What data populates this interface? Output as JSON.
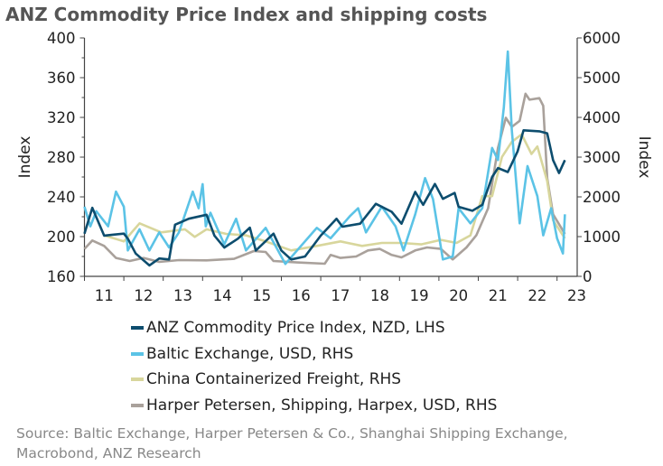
{
  "chart_data": {
    "type": "line",
    "title": "ANZ Commodity Price Index and shipping costs",
    "ylabel_left": "Index",
    "ylabel_right": "Index",
    "ylim_left": [
      160,
      400
    ],
    "ylim_right": [
      0,
      6000
    ],
    "yticks_left": [
      160,
      200,
      240,
      280,
      320,
      360,
      400
    ],
    "yticks_right": [
      0,
      1000,
      2000,
      3000,
      4000,
      5000,
      6000
    ],
    "xlim": [
      2011,
      2023.4
    ],
    "xtick_labels": [
      "11",
      "12",
      "13",
      "14",
      "15",
      "16",
      "17",
      "18",
      "19",
      "20",
      "21",
      "22",
      "23"
    ],
    "grid": false,
    "legend_position": "bottom",
    "series": [
      {
        "name": "ANZ Commodity Price Index, NZD, LHS",
        "axis": "left",
        "color": "#0d4d6e",
        "x": [
          2011.0,
          2011.2,
          2011.5,
          2012.0,
          2012.1,
          2012.3,
          2012.65,
          2012.9,
          2013.15,
          2013.3,
          2013.65,
          2014.1,
          2014.3,
          2014.55,
          2014.9,
          2015.2,
          2015.35,
          2015.8,
          2016.0,
          2016.25,
          2016.6,
          2017.0,
          2017.4,
          2017.55,
          2018.0,
          2018.4,
          2018.8,
          2019.05,
          2019.4,
          2019.6,
          2019.9,
          2020.1,
          2020.4,
          2020.5,
          2020.85,
          2021.1,
          2021.35,
          2021.5,
          2021.75,
          2022.0,
          2022.15,
          2022.55,
          2022.75,
          2022.9,
          2023.05,
          2023.2
        ],
        "y": [
          203,
          229,
          201,
          203,
          198,
          183,
          171,
          178,
          177,
          212,
          218,
          222,
          201,
          189,
          198,
          209,
          186,
          203,
          186,
          177,
          180,
          201,
          218,
          210,
          213,
          233,
          225,
          213,
          245,
          232,
          253,
          238,
          244,
          230,
          226,
          232,
          260,
          269,
          265,
          286,
          307,
          306,
          304,
          277,
          264,
          277
        ]
      },
      {
        "name": "Baltic Exchange, USD, RHS",
        "axis": "right",
        "color": "#5bc3e6",
        "x": [
          2011.0,
          2011.15,
          2011.3,
          2011.6,
          2011.8,
          2012.0,
          2012.1,
          2012.4,
          2012.65,
          2012.9,
          2013.15,
          2013.4,
          2013.75,
          2013.9,
          2014.0,
          2014.08,
          2014.2,
          2014.55,
          2014.85,
          2015.1,
          2015.6,
          2016.1,
          2016.4,
          2016.9,
          2017.25,
          2017.75,
          2017.95,
          2018.15,
          2018.55,
          2018.9,
          2019.1,
          2019.4,
          2019.65,
          2019.85,
          2020.1,
          2020.35,
          2020.5,
          2020.8,
          2021.1,
          2021.35,
          2021.5,
          2021.65,
          2021.75,
          2021.85,
          2022.05,
          2022.25,
          2022.5,
          2022.65,
          2022.85,
          2023.0,
          2023.15,
          2023.2
        ],
        "y": [
          1752,
          1259,
          1638,
          1259,
          2131,
          1752,
          652,
          1183,
          652,
          1107,
          728,
          1107,
          2131,
          1714,
          2321,
          1259,
          1600,
          804,
          1449,
          652,
          1221,
          311,
          652,
          1221,
          956,
          1525,
          1714,
          1107,
          1752,
          1259,
          652,
          1562,
          2473,
          1942,
          425,
          501,
          1714,
          1335,
          1714,
          3231,
          2928,
          4255,
          5658,
          3686,
          1335,
          2776,
          2018,
          1032,
          1714,
          956,
          576,
          1562
        ]
      },
      {
        "name": "China Containerized Freight, RHS",
        "axis": "right",
        "color": "#d8d69c",
        "x": [
          2011.5,
          2012.0,
          2012.4,
          2012.95,
          2013.55,
          2013.8,
          2014.1,
          2014.6,
          2015.1,
          2015.6,
          2016.25,
          2016.9,
          2017.5,
          2018.05,
          2018.55,
          2019.05,
          2019.55,
          2020.05,
          2020.45,
          2020.8,
          2021.1,
          2021.35,
          2021.6,
          2021.85,
          2022.1,
          2022.35,
          2022.5,
          2022.75,
          2022.9,
          2023.2
        ],
        "y": [
          1032,
          880,
          1335,
          1107,
          1183,
          994,
          1183,
          1069,
          1032,
          880,
          652,
          766,
          880,
          766,
          842,
          842,
          804,
          918,
          842,
          1032,
          2018,
          2018,
          3004,
          3383,
          3573,
          3080,
          3269,
          2397,
          1411,
          956
        ]
      },
      {
        "name": "Harper Petersen, Shipping, Harpex, USD, RHS",
        "axis": "right",
        "color": "#a9a19b",
        "x": [
          2011.0,
          2011.2,
          2011.5,
          2011.8,
          2012.15,
          2012.5,
          2012.9,
          2013.4,
          2014.1,
          2014.8,
          2015.3,
          2015.6,
          2015.8,
          2016.4,
          2017.1,
          2017.25,
          2017.5,
          2017.9,
          2018.2,
          2018.5,
          2018.8,
          2019.05,
          2019.4,
          2019.7,
          2020.05,
          2020.35,
          2020.7,
          2020.95,
          2021.25,
          2021.5,
          2021.7,
          2021.85,
          2022.05,
          2022.2,
          2022.3,
          2022.55,
          2022.65,
          2022.75,
          2022.9,
          2023.2
        ],
        "y": [
          690,
          903,
          766,
          463,
          387,
          463,
          364,
          410,
          402,
          440,
          637,
          614,
          387,
          349,
          319,
          539,
          463,
          500,
          652,
          690,
          539,
          478,
          652,
          728,
          690,
          425,
          728,
          1032,
          1714,
          3231,
          3990,
          3762,
          3914,
          4596,
          4445,
          4483,
          4293,
          2473,
          1562,
          1069
        ]
      }
    ]
  },
  "source": {
    "line1": "Source: Baltic Exchange, Harper Petersen & Co., Shanghai Shipping Exchange,",
    "line2": "Macrobond, ANZ Research"
  }
}
